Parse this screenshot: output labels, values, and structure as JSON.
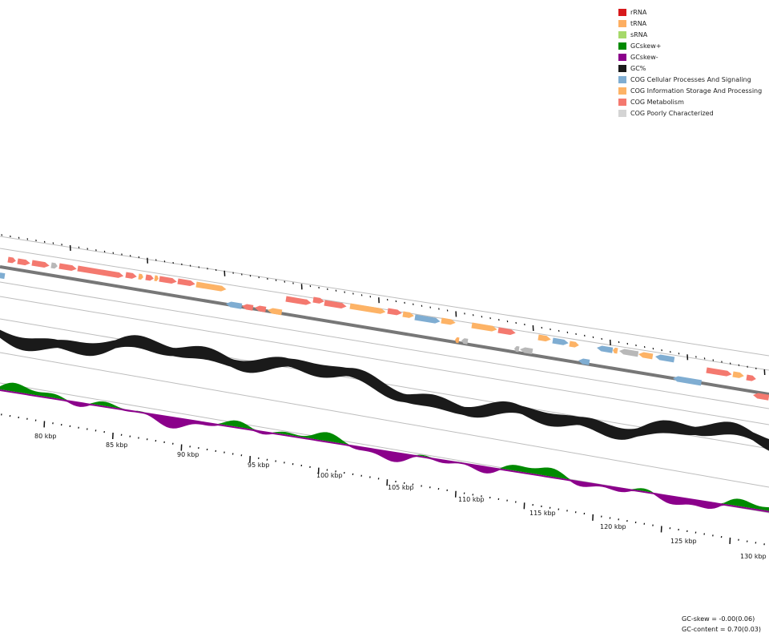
{
  "legend": [
    {
      "label": "rRNA",
      "color": "#d7191c"
    },
    {
      "label": "tRNA",
      "color": "#fdae61"
    },
    {
      "label": "sRNA",
      "color": "#a6d96a"
    },
    {
      "label": "GCskew+",
      "color": "#008a00"
    },
    {
      "label": "GCskew-",
      "color": "#8b008b"
    },
    {
      "label": "GC%",
      "color": "#1a1a1a"
    },
    {
      "label": "COG Cellular Processes And Signaling",
      "color": "#7fadd2"
    },
    {
      "label": "COG Information Storage And Processing",
      "color": "#fdb366"
    },
    {
      "label": "COG Metabolism",
      "color": "#f4796f"
    },
    {
      "label": "COG Poorly Characterized",
      "color": "#d4d4d4"
    }
  ],
  "tick_labels": [
    "80 kbp",
    "85 kbp",
    "90 kbp",
    "95 kbp",
    "100 kbp",
    "105 kbp",
    "110 kbp",
    "115 kbp",
    "120 kbp",
    "125 kbp",
    "130 kbp"
  ],
  "stats": {
    "gc_skew": "GC-skew = -0.00(0.06)",
    "gc_content": "GC-content = 0.70(0.03)"
  }
}
